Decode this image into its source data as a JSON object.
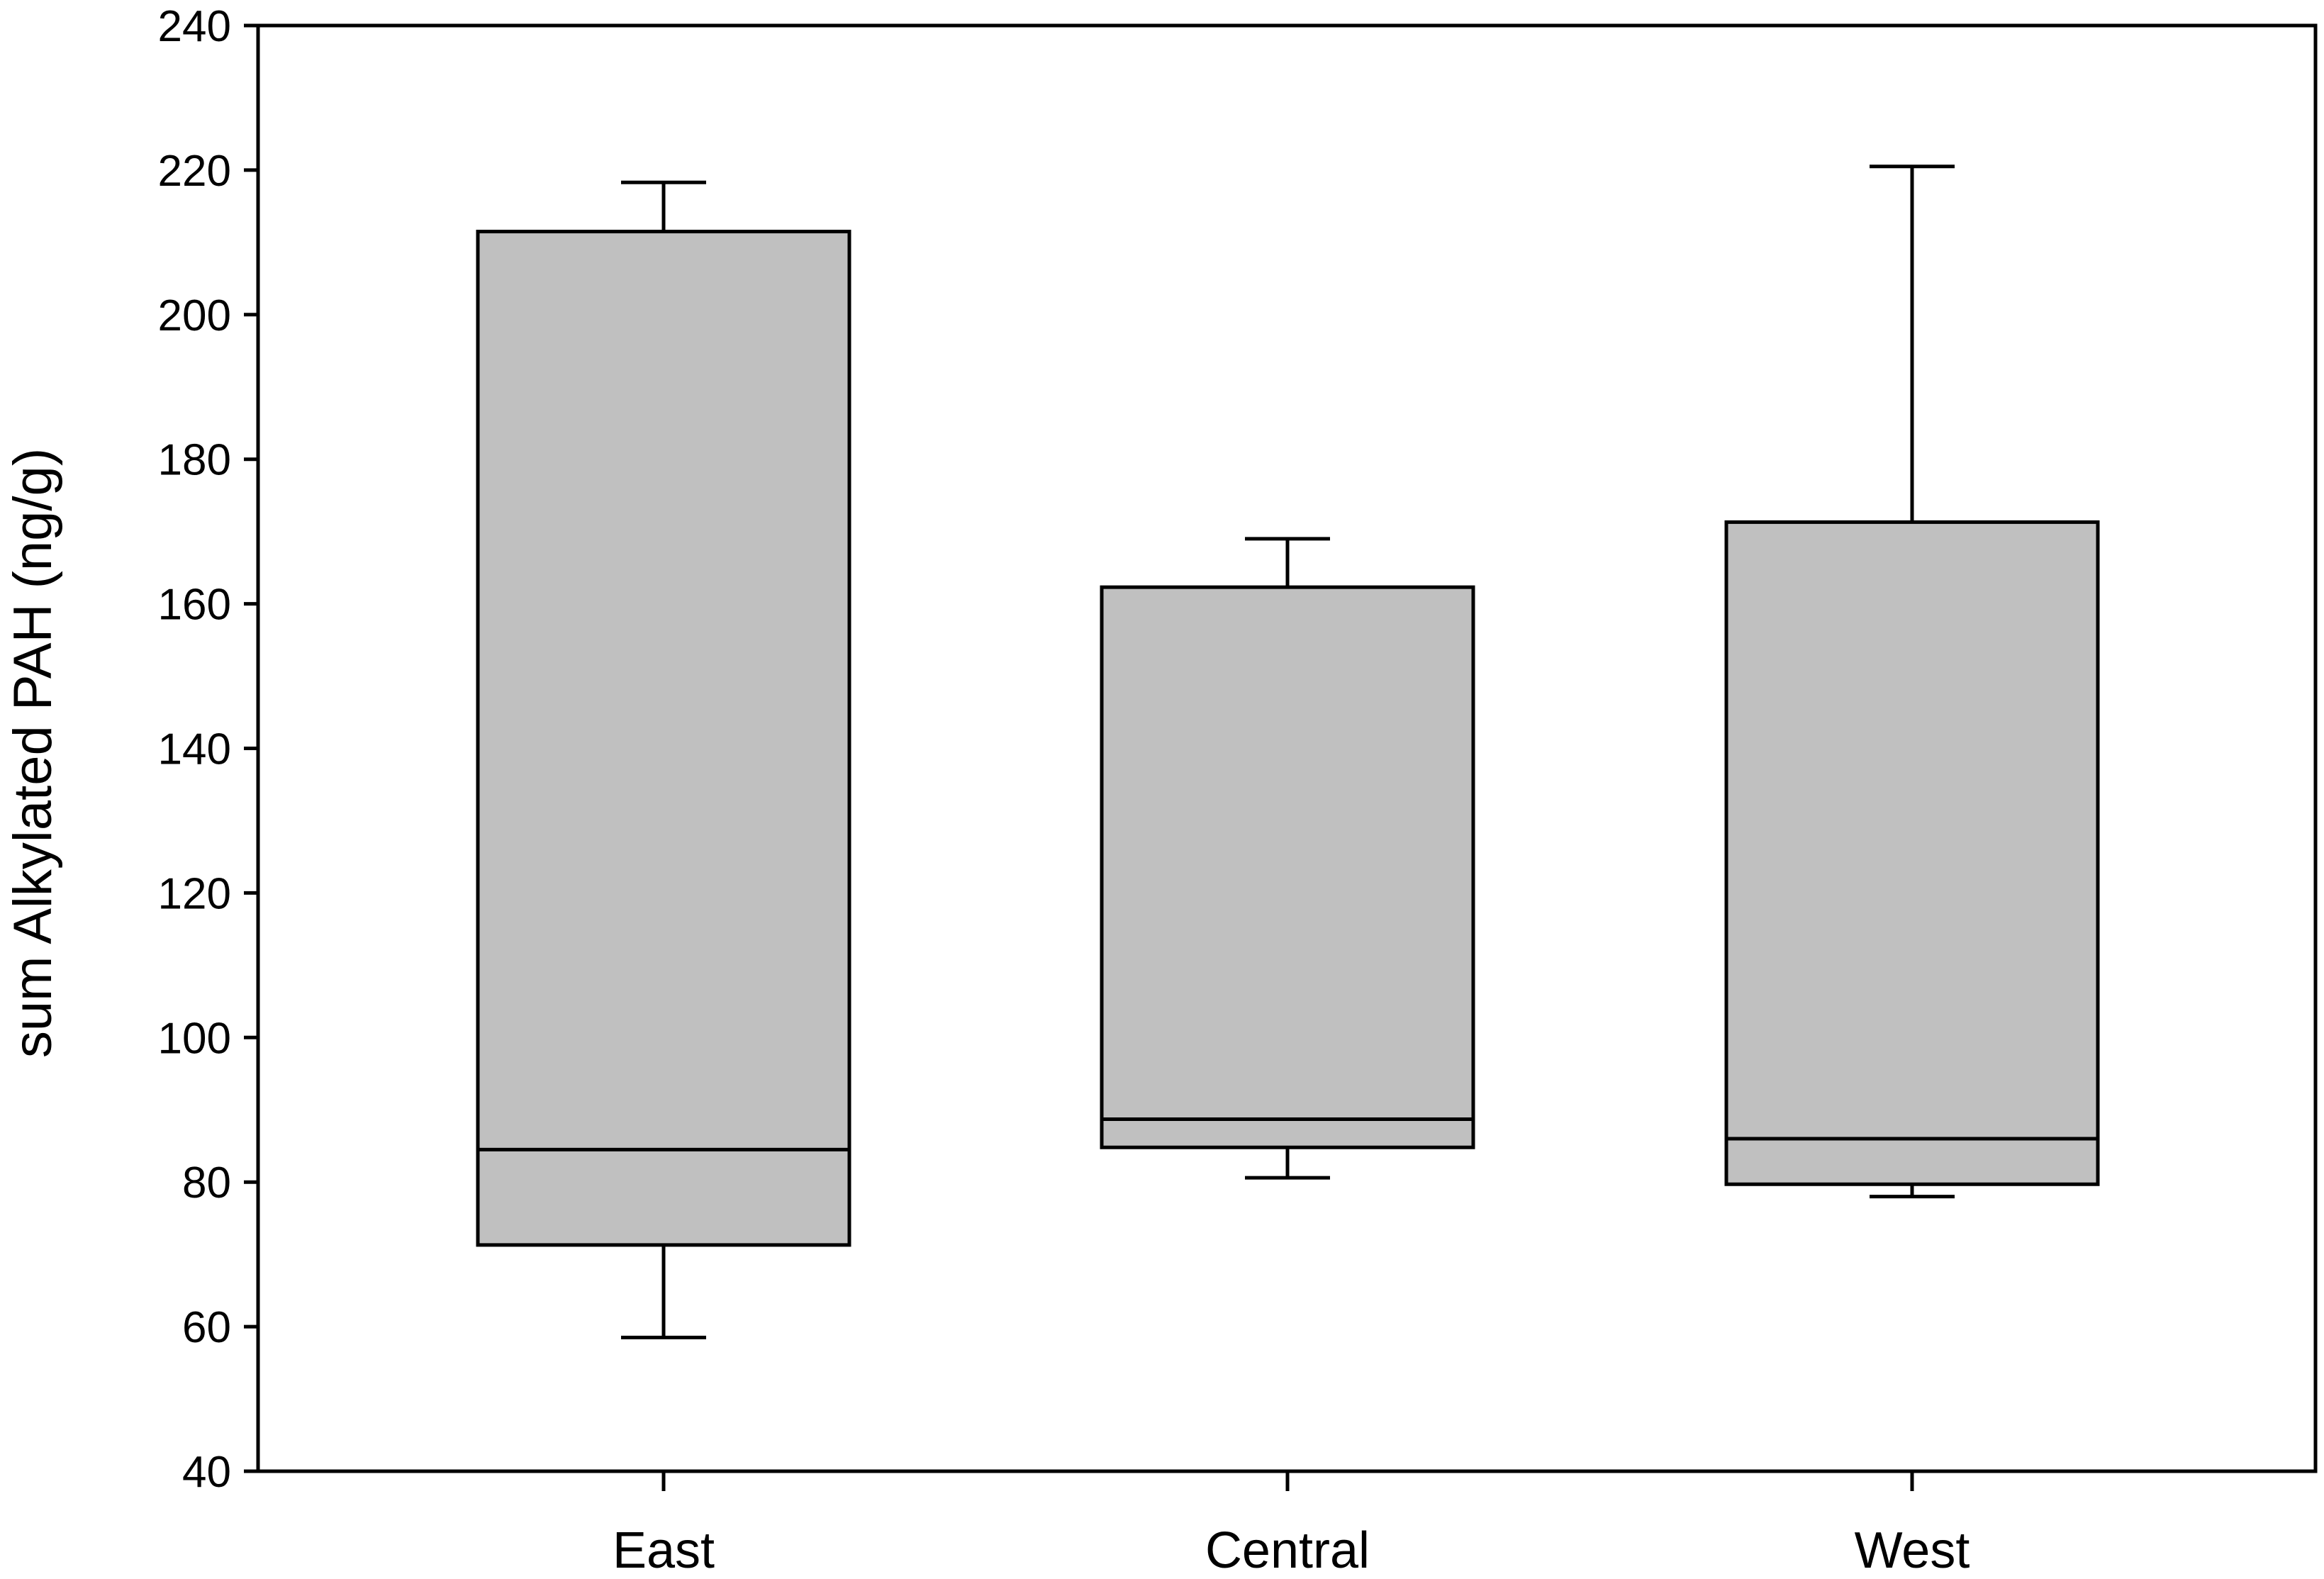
{
  "chart_data": {
    "type": "box",
    "title": "",
    "xlabel": "",
    "ylabel": "sum Alkylated PAH (ng/g)",
    "ylim": [
      40,
      240
    ],
    "yticks": [
      40,
      60,
      80,
      100,
      120,
      140,
      160,
      180,
      200,
      220,
      240
    ],
    "categories": [
      "East",
      "Central",
      "West"
    ],
    "boxes": [
      {
        "category": "East",
        "whisker_low": 58.5,
        "q1": 71.3,
        "median": 84.5,
        "q3": 211.5,
        "whisker_high": 218.3
      },
      {
        "category": "Central",
        "whisker_low": 80.6,
        "q1": 84.8,
        "median": 88.7,
        "q3": 162.3,
        "whisker_high": 169.0
      },
      {
        "category": "West",
        "whisker_low": 78.0,
        "q1": 79.7,
        "median": 86.0,
        "q3": 171.3,
        "whisker_high": 220.5
      }
    ],
    "colors": {
      "box_fill": "#c0c0c0",
      "stroke": "#000000"
    },
    "grid": false
  }
}
